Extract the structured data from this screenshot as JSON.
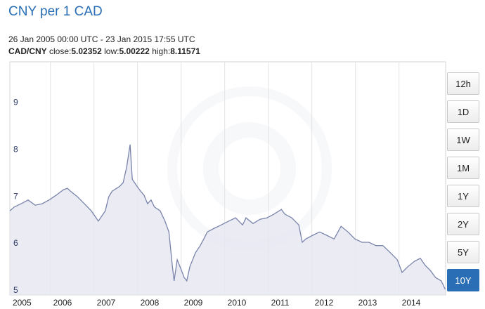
{
  "header": {
    "title": "CNY per 1 CAD",
    "period": "26 Jan 2005 00:00 UTC - 23 Jan 2015 17:55 UTC",
    "pair": "CAD/CNY",
    "stats": [
      {
        "label": "close:",
        "value": 5.02352
      },
      {
        "label": "low:",
        "value": 5.00222
      },
      {
        "label": "high:",
        "value": 8.11571
      }
    ]
  },
  "chart_data": {
    "type": "area",
    "color": "#7a84ab",
    "fill": "#e6e8f1",
    "xgrid": true,
    "ygrid": false,
    "xlim": [
      2005.07,
      2015.07
    ],
    "ylim": [
      4.91,
      9.87
    ],
    "xticks": [
      2005,
      2006,
      2007,
      2008,
      2009,
      2010,
      2011,
      2012,
      2013,
      2014
    ],
    "yticks": [
      5,
      6,
      7,
      8,
      9
    ],
    "x": [
      2005.07,
      2005.17,
      2005.33,
      2005.49,
      2005.65,
      2005.81,
      2005.97,
      2006.13,
      2006.3,
      2006.39,
      2006.46,
      2006.62,
      2006.78,
      2006.94,
      2007.1,
      2007.26,
      2007.34,
      2007.42,
      2007.59,
      2007.67,
      2007.75,
      2007.83,
      2007.88,
      2007.99,
      2008.07,
      2008.15,
      2008.23,
      2008.31,
      2008.39,
      2008.52,
      2008.63,
      2008.72,
      2008.8,
      2008.84,
      2008.91,
      2009.01,
      2009.07,
      2009.13,
      2009.2,
      2009.33,
      2009.44,
      2009.52,
      2009.6,
      2009.76,
      2009.92,
      2010.09,
      2010.25,
      2010.41,
      2010.49,
      2010.65,
      2010.81,
      2010.97,
      2011.13,
      2011.3,
      2011.38,
      2011.54,
      2011.7,
      2011.78,
      2011.86,
      2012.02,
      2012.18,
      2012.34,
      2012.51,
      2012.67,
      2012.83,
      2012.99,
      2013.15,
      2013.31,
      2013.47,
      2013.63,
      2013.8,
      2013.96,
      2014.07,
      2014.2,
      2014.36,
      2014.49,
      2014.6,
      2014.72,
      2014.84,
      2014.97,
      2015.06
    ],
    "values": [
      6.7,
      6.78,
      6.85,
      6.93,
      6.82,
      6.85,
      6.93,
      7.03,
      7.15,
      7.18,
      7.12,
      7.0,
      6.85,
      6.7,
      6.48,
      6.7,
      7.0,
      7.12,
      7.22,
      7.3,
      7.63,
      8.11,
      7.37,
      7.22,
      7.12,
      7.03,
      6.85,
      6.93,
      6.78,
      6.7,
      6.48,
      6.25,
      5.51,
      5.21,
      5.66,
      5.43,
      5.28,
      5.21,
      5.51,
      5.81,
      5.96,
      6.1,
      6.25,
      6.33,
      6.4,
      6.48,
      6.55,
      6.4,
      6.55,
      6.43,
      6.52,
      6.55,
      6.63,
      6.73,
      6.63,
      6.55,
      6.4,
      6.03,
      6.1,
      6.18,
      6.25,
      6.18,
      6.1,
      6.37,
      6.25,
      6.1,
      6.03,
      6.03,
      5.96,
      5.96,
      5.81,
      5.66,
      5.39,
      5.51,
      5.63,
      5.69,
      5.54,
      5.43,
      5.28,
      5.21,
      5.03
    ]
  },
  "range_buttons": [
    {
      "label": "12h",
      "selected": false
    },
    {
      "label": "1D",
      "selected": false
    },
    {
      "label": "1W",
      "selected": false
    },
    {
      "label": "1M",
      "selected": false
    },
    {
      "label": "1Y",
      "selected": false
    },
    {
      "label": "2Y",
      "selected": false
    },
    {
      "label": "5Y",
      "selected": false
    },
    {
      "label": "10Y",
      "selected": true
    }
  ]
}
